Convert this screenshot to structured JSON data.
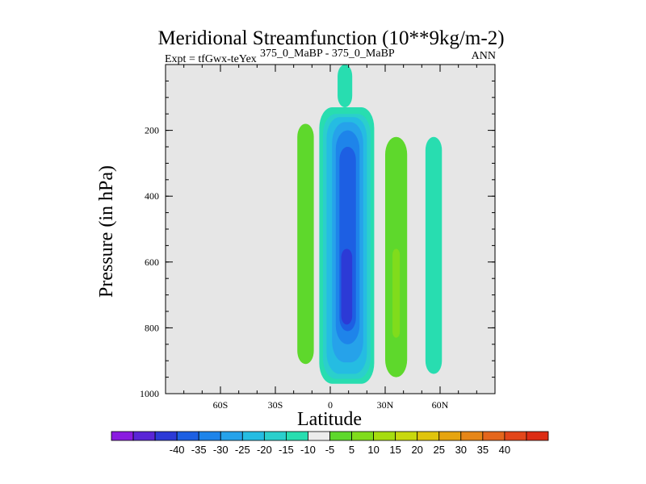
{
  "chart_data": {
    "type": "contour",
    "title": "Meridional Streamfunction (10**9kg/m-2)",
    "subtitle_left": "Expt = tfGwx-teYex",
    "subtitle_sup": "375_0_MaBP - 375_0_MaBP",
    "subtitle_right": "ANN",
    "xlabel": "Latitude",
    "ylabel": "Pressure (in hPa)",
    "xlim": [
      -90,
      90
    ],
    "ylim": [
      1000,
      0
    ],
    "x_ticks": [
      {
        "value": -60,
        "label": "60S"
      },
      {
        "value": -30,
        "label": "30S"
      },
      {
        "value": 0,
        "label": "0"
      },
      {
        "value": 30,
        "label": "30N"
      },
      {
        "value": 60,
        "label": "60N"
      }
    ],
    "y_ticks": [
      {
        "value": 200,
        "label": "200"
      },
      {
        "value": 400,
        "label": "400"
      },
      {
        "value": 600,
        "label": "600"
      },
      {
        "value": 800,
        "label": "800"
      },
      {
        "value": 1000,
        "label": "1000"
      }
    ],
    "background_color": "#e6e6e6",
    "colorbar": {
      "colors": [
        "#8a1be0",
        "#5a25d6",
        "#2c3ad6",
        "#1d5fe3",
        "#1e84ea",
        "#26a2ea",
        "#25bce2",
        "#2bcfcc",
        "#28ddb0",
        "#ececec",
        "#5ed82c",
        "#80dc1c",
        "#a6dc10",
        "#c8d80e",
        "#e0c40c",
        "#e6a410",
        "#e68618",
        "#e4661c",
        "#e2461a",
        "#dc2c14"
      ],
      "labels": [
        "-40",
        "-35",
        "-30",
        "-25",
        "-20",
        "-15",
        "-10",
        "-5",
        "5",
        "10",
        "15",
        "20",
        "25",
        "30",
        "35",
        "40"
      ]
    },
    "cells": [
      {
        "level": 5,
        "lat_min": -18,
        "lat_max": -9,
        "p_top": 180,
        "p_bottom": 910,
        "color": "#5ed82c"
      },
      {
        "level": -5,
        "lat_min": 4,
        "lat_max": 12,
        "p_top": 0,
        "p_bottom": 130,
        "color": "#28ddb0"
      },
      {
        "level": -5,
        "lat_min": -6,
        "lat_max": 24,
        "p_top": 130,
        "p_bottom": 970,
        "color": "#28ddb0"
      },
      {
        "level": -10,
        "lat_min": -4,
        "lat_max": 22,
        "p_top": 150,
        "p_bottom": 955,
        "color": "#2bcfcc"
      },
      {
        "level": -15,
        "lat_min": -2,
        "lat_max": 20,
        "p_top": 160,
        "p_bottom": 940,
        "color": "#25bce2"
      },
      {
        "level": -20,
        "lat_min": 1,
        "lat_max": 18,
        "p_top": 175,
        "p_bottom": 905,
        "color": "#26a2ea"
      },
      {
        "level": -25,
        "lat_min": 3,
        "lat_max": 16,
        "p_top": 200,
        "p_bottom": 850,
        "color": "#1e84ea"
      },
      {
        "level": -30,
        "lat_min": 5,
        "lat_max": 14,
        "p_top": 250,
        "p_bottom": 810,
        "color": "#1d5fe3"
      },
      {
        "level": -35,
        "lat_min": 6,
        "lat_max": 12,
        "p_top": 560,
        "p_bottom": 790,
        "color": "#2c3ad6"
      },
      {
        "level": 5,
        "lat_min": 30,
        "lat_max": 42,
        "p_top": 220,
        "p_bottom": 950,
        "color": "#5ed82c"
      },
      {
        "level": 10,
        "lat_min": 34,
        "lat_max": 38,
        "p_top": 560,
        "p_bottom": 830,
        "color": "#80dc1c"
      },
      {
        "level": -5,
        "lat_min": 52,
        "lat_max": 61,
        "p_top": 220,
        "p_bottom": 940,
        "color": "#28ddb0"
      }
    ]
  }
}
